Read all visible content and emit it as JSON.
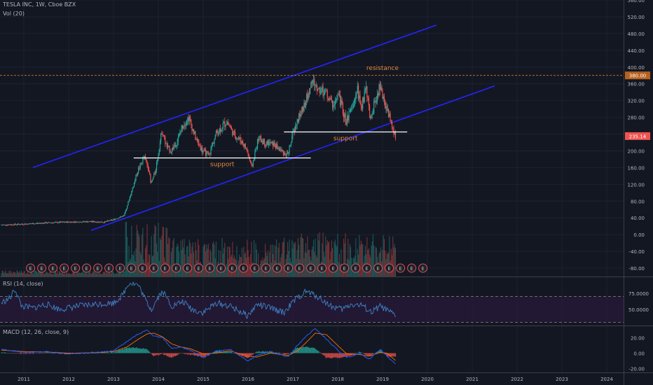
{
  "header": {
    "symbol_line": "TESLA INC, 1W, Cboe BZX",
    "vol_label": "Vol (20)"
  },
  "rsi_panel": {
    "label": "RSI (14, close)"
  },
  "macd_panel": {
    "label": "MACD (12, 26, close, 9)"
  },
  "colors": {
    "background": "#131722",
    "up_candle": "#26a69a",
    "down_candle": "#ef5350",
    "channel": "#2424ff",
    "support_line": "#ffffff",
    "annotation": "#e8893a",
    "rsi_line": "#3f82c8",
    "rsi_band": "#2a1a3a",
    "macd_line": "#2962ff",
    "signal_line": "#ff6d00",
    "price_tag": "#ef5350",
    "level_tag": "#b5621f"
  },
  "chart_data": {
    "type": "candlestick",
    "price_axis": {
      "ylim": [
        -100,
        560
      ],
      "tick_labels": [
        "560.00",
        "520.00",
        "480.00",
        "440.00",
        "400.00",
        "360.00",
        "320.00",
        "280.00",
        "240.00",
        "200.00",
        "160.00",
        "120.00",
        "80.00",
        "40.00",
        "0.00",
        "-40.00",
        "-80.00"
      ],
      "tick_values": [
        560,
        520,
        480,
        440,
        400,
        360,
        320,
        280,
        240,
        200,
        160,
        120,
        80,
        40,
        0,
        -40,
        -80
      ]
    },
    "x_axis": {
      "labels": [
        "2011",
        "2012",
        "2013",
        "2014",
        "2015",
        "2016",
        "2017",
        "2018",
        "2019",
        "2020",
        "2021",
        "2022",
        "2023",
        "2024"
      ],
      "years": [
        2011,
        2012,
        2013,
        2014,
        2015,
        2016,
        2017,
        2018,
        2019,
        2020,
        2021,
        2022,
        2023,
        2024
      ]
    },
    "data_range": [
      2010.5,
      2019.3
    ],
    "price_path": [
      [
        2010.5,
        23
      ],
      [
        2011.0,
        25
      ],
      [
        2011.5,
        28
      ],
      [
        2012.0,
        30
      ],
      [
        2012.5,
        31
      ],
      [
        2012.8,
        30
      ],
      [
        2013.0,
        35
      ],
      [
        2013.25,
        45
      ],
      [
        2013.4,
        95
      ],
      [
        2013.55,
        150
      ],
      [
        2013.7,
        185
      ],
      [
        2013.8,
        160
      ],
      [
        2013.85,
        120
      ],
      [
        2013.95,
        150
      ],
      [
        2014.1,
        250
      ],
      [
        2014.2,
        210
      ],
      [
        2014.3,
        200
      ],
      [
        2014.45,
        225
      ],
      [
        2014.55,
        260
      ],
      [
        2014.7,
        280
      ],
      [
        2014.85,
        230
      ],
      [
        2015.0,
        200
      ],
      [
        2015.15,
        190
      ],
      [
        2015.3,
        240
      ],
      [
        2015.45,
        260
      ],
      [
        2015.55,
        270
      ],
      [
        2015.7,
        240
      ],
      [
        2015.9,
        220
      ],
      [
        2016.0,
        200
      ],
      [
        2016.1,
        160
      ],
      [
        2016.25,
        230
      ],
      [
        2016.4,
        220
      ],
      [
        2016.6,
        215
      ],
      [
        2016.75,
        200
      ],
      [
        2016.9,
        190
      ],
      [
        2017.0,
        235
      ],
      [
        2017.15,
        280
      ],
      [
        2017.35,
        330
      ],
      [
        2017.45,
        370
      ],
      [
        2017.55,
        350
      ],
      [
        2017.75,
        340
      ],
      [
        2017.9,
        310
      ],
      [
        2018.05,
        330
      ],
      [
        2018.2,
        270
      ],
      [
        2018.35,
        300
      ],
      [
        2018.45,
        350
      ],
      [
        2018.55,
        300
      ],
      [
        2018.65,
        360
      ],
      [
        2018.75,
        270
      ],
      [
        2018.85,
        320
      ],
      [
        2018.95,
        350
      ],
      [
        2019.05,
        320
      ],
      [
        2019.15,
        290
      ],
      [
        2019.25,
        250
      ],
      [
        2019.3,
        235
      ]
    ],
    "current_price": 235.14,
    "current_price_label": "235.14",
    "resistance_level": 380,
    "resistance_label": "380.00",
    "channel_upper": [
      [
        2011.2,
        160
      ],
      [
        2020.2,
        500
      ]
    ],
    "channel_lower": [
      [
        2012.5,
        10
      ],
      [
        2021.5,
        355
      ]
    ],
    "support_lines": [
      {
        "x": [
          2013.45,
          2017.4
        ],
        "y": 183,
        "label": "support"
      },
      {
        "x": [
          2016.8,
          2019.55
        ],
        "y": 245,
        "label": "support"
      }
    ],
    "resistance_annotation": {
      "label": "resistance",
      "x": 2019.0,
      "y": 393
    },
    "volume": {
      "ylim": [
        0,
        2.4
      ]
    },
    "earnings": {
      "marker": "E",
      "count": 36,
      "start": 2011.15,
      "step": 0.25
    },
    "rsi": {
      "period": 14,
      "ylim": [
        25,
        100
      ],
      "tick_labels": [
        "75.0000",
        "50.0000"
      ],
      "tick_values": [
        75,
        50
      ],
      "overbought": 70,
      "oversold": 30,
      "path": [
        [
          2010.5,
          60
        ],
        [
          2010.7,
          68
        ],
        [
          2010.8,
          82
        ],
        [
          2010.95,
          55
        ],
        [
          2011.2,
          52
        ],
        [
          2011.5,
          58
        ],
        [
          2011.8,
          50
        ],
        [
          2012.2,
          55
        ],
        [
          2012.6,
          58
        ],
        [
          2013.0,
          60
        ],
        [
          2013.2,
          72
        ],
        [
          2013.35,
          92
        ],
        [
          2013.55,
          88
        ],
        [
          2013.75,
          60
        ],
        [
          2013.85,
          50
        ],
        [
          2014.0,
          70
        ],
        [
          2014.1,
          78
        ],
        [
          2014.3,
          55
        ],
        [
          2014.55,
          62
        ],
        [
          2014.75,
          50
        ],
        [
          2015.0,
          45
        ],
        [
          2015.3,
          60
        ],
        [
          2015.6,
          55
        ],
        [
          2016.0,
          40
        ],
        [
          2016.2,
          58
        ],
        [
          2016.5,
          52
        ],
        [
          2016.8,
          45
        ],
        [
          2017.05,
          65
        ],
        [
          2017.3,
          78
        ],
        [
          2017.55,
          70
        ],
        [
          2017.85,
          55
        ],
        [
          2018.1,
          50
        ],
        [
          2018.3,
          58
        ],
        [
          2018.55,
          56
        ],
        [
          2018.75,
          45
        ],
        [
          2018.95,
          55
        ],
        [
          2019.1,
          48
        ],
        [
          2019.3,
          40
        ]
      ]
    },
    "macd": {
      "params": [
        12,
        26,
        9
      ],
      "ylim": [
        -25,
        35
      ],
      "tick_labels": [
        "20.00",
        "0.00",
        "-20.00"
      ],
      "tick_values": [
        20,
        0,
        -20
      ],
      "macd_path": [
        [
          2010.5,
          5
        ],
        [
          2011.0,
          1
        ],
        [
          2011.5,
          2
        ],
        [
          2012.0,
          -1
        ],
        [
          2012.6,
          1
        ],
        [
          2013.0,
          3
        ],
        [
          2013.3,
          15
        ],
        [
          2013.55,
          25
        ],
        [
          2013.75,
          30
        ],
        [
          2013.9,
          22
        ],
        [
          2014.1,
          20
        ],
        [
          2014.3,
          6
        ],
        [
          2014.5,
          8
        ],
        [
          2014.7,
          4
        ],
        [
          2015.0,
          -6
        ],
        [
          2015.3,
          3
        ],
        [
          2015.6,
          5
        ],
        [
          2016.0,
          -10
        ],
        [
          2016.2,
          -3
        ],
        [
          2016.5,
          2
        ],
        [
          2016.9,
          -5
        ],
        [
          2017.1,
          10
        ],
        [
          2017.3,
          22
        ],
        [
          2017.5,
          32
        ],
        [
          2017.75,
          18
        ],
        [
          2018.0,
          4
        ],
        [
          2018.2,
          -6
        ],
        [
          2018.5,
          0
        ],
        [
          2018.7,
          -8
        ],
        [
          2018.95,
          5
        ],
        [
          2019.1,
          -4
        ],
        [
          2019.3,
          -15
        ]
      ],
      "signal_path": [
        [
          2010.5,
          4
        ],
        [
          2011.0,
          2
        ],
        [
          2011.5,
          1.5
        ],
        [
          2012.0,
          0
        ],
        [
          2012.6,
          0.5
        ],
        [
          2013.0,
          2
        ],
        [
          2013.3,
          8
        ],
        [
          2013.55,
          18
        ],
        [
          2013.75,
          25
        ],
        [
          2013.9,
          26
        ],
        [
          2014.1,
          21
        ],
        [
          2014.3,
          12
        ],
        [
          2014.5,
          8
        ],
        [
          2014.7,
          6
        ],
        [
          2015.0,
          -1
        ],
        [
          2015.3,
          0
        ],
        [
          2015.6,
          3
        ],
        [
          2016.0,
          -4
        ],
        [
          2016.2,
          -5
        ],
        [
          2016.5,
          0
        ],
        [
          2016.9,
          -3
        ],
        [
          2017.1,
          3
        ],
        [
          2017.3,
          14
        ],
        [
          2017.5,
          26
        ],
        [
          2017.75,
          24
        ],
        [
          2018.0,
          10
        ],
        [
          2018.2,
          -1
        ],
        [
          2018.5,
          -2
        ],
        [
          2018.7,
          -4
        ],
        [
          2018.95,
          1
        ],
        [
          2019.1,
          0
        ],
        [
          2019.3,
          -10
        ]
      ]
    }
  }
}
